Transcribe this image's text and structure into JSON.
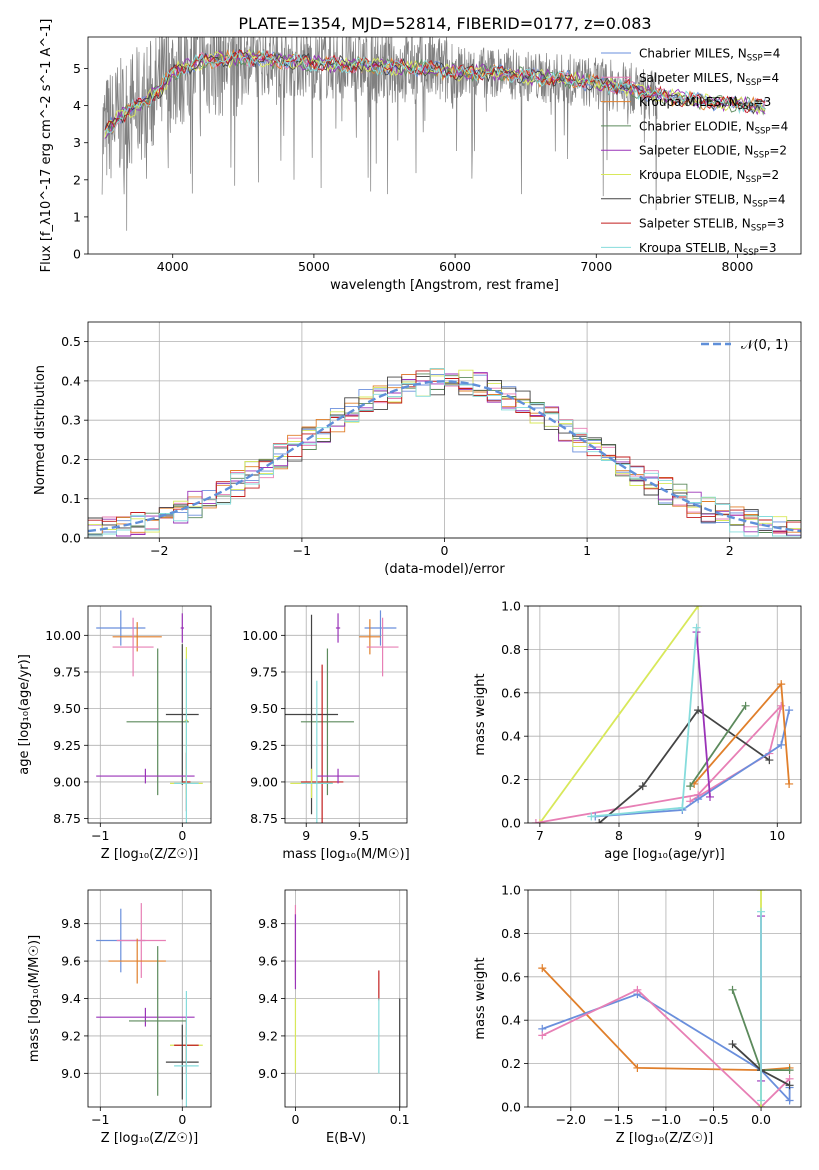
{
  "figure_title": "PLATE=1354, MJD=52814, FIBERID=0177, z=0.083",
  "colors": {
    "Chabrier MILES": "#6a8fdc",
    "Salpeter MILES": "#e77fb5",
    "Kroupa MILES": "#e07f2b",
    "Chabrier ELODIE": "#5c8a5c",
    "Salpeter ELODIE": "#9a33b8",
    "Kroupa ELODIE": "#d8e85a",
    "Chabrier STELIB": "#444444",
    "Salpeter STELIB": "#c21e1e",
    "Kroupa STELIB": "#86dcdc",
    "data": "#808080",
    "normal": "#5f8fd9"
  },
  "chart_data": [
    {
      "id": "spectrum",
      "type": "line",
      "xlabel": "wavelength [Angstrom, rest frame]",
      "ylabel": "Flux [f_λ10^-17 erg cm^-2 s^-1 A^-1]",
      "xlim": [
        3400,
        8450
      ],
      "ylim": [
        0,
        5.85
      ],
      "xticks": [
        4000,
        5000,
        6000,
        7000,
        8000
      ],
      "yticks": [
        0,
        1,
        2,
        3,
        4,
        5
      ],
      "grid": false,
      "legend_position": "upper-right",
      "legend": [
        {
          "name": "Chabrier MILES",
          "nssp": "4"
        },
        {
          "name": "Salpeter MILES",
          "nssp": "4"
        },
        {
          "name": "Kroupa MILES",
          "nssp": "3"
        },
        {
          "name": "Chabrier ELODIE",
          "nssp": "4"
        },
        {
          "name": "Salpeter ELODIE",
          "nssp": "2"
        },
        {
          "name": "Kroupa ELODIE",
          "nssp": "2"
        },
        {
          "name": "Chabrier STELIB",
          "nssp": "4"
        },
        {
          "name": "Salpeter STELIB",
          "nssp": "3"
        },
        {
          "name": "Kroupa STELIB",
          "nssp": "3"
        }
      ],
      "continuum": {
        "wavelength": [
          3500,
          3600,
          3700,
          3800,
          3900,
          4000,
          4200,
          4500,
          4800,
          5000,
          5200,
          5500,
          5800,
          6000,
          6300,
          6600,
          6800,
          7000,
          7200,
          7400,
          7600,
          7800,
          8000,
          8200
        ],
        "flux": [
          3.2,
          3.6,
          3.9,
          4.1,
          4.4,
          4.9,
          5.2,
          5.3,
          5.2,
          5.15,
          5.1,
          5.05,
          5.0,
          4.9,
          4.9,
          4.75,
          4.7,
          4.6,
          4.5,
          4.3,
          4.2,
          4.1,
          4.05,
          3.95
        ]
      }
    },
    {
      "id": "residuals",
      "type": "line",
      "xlabel": "(data-model)/error",
      "ylabel": "Normed distribution",
      "xlim": [
        -2.5,
        2.5
      ],
      "ylim": [
        0,
        0.55
      ],
      "xticks": [
        -2,
        -1,
        0,
        1,
        2
      ],
      "xtick_labels": [
        "−2",
        "−1",
        "0",
        "1",
        "2"
      ],
      "yticks": [
        0.0,
        0.1,
        0.2,
        0.3,
        0.4,
        0.5
      ],
      "grid": true,
      "legend_position": "upper-right",
      "legend_label": "𝒩(0, 1)",
      "normal_curve": {
        "mean": 0,
        "sigma": 1
      }
    },
    {
      "id": "age-vs-Z",
      "type": "scatter",
      "xlabel": "Z [log₁₀(Z/Z☉)]",
      "ylabel": "age  [log₁₀(age/yr)]",
      "xlim": [
        -1.15,
        0.35
      ],
      "ylim": [
        8.72,
        10.2
      ],
      "xticks": [
        -1,
        0
      ],
      "xtick_labels": [
        "−1",
        "0"
      ],
      "yticks": [
        8.75,
        9.0,
        9.25,
        9.5,
        9.75,
        10.0
      ],
      "grid": true,
      "points": [
        {
          "model": "Chabrier MILES",
          "x": -0.75,
          "y": 10.05,
          "xerr": 0.3,
          "yerr": 0.12
        },
        {
          "model": "Kroupa MILES",
          "x": -0.55,
          "y": 9.99,
          "xerr": 0.3,
          "yerr": 0.1
        },
        {
          "model": "Salpeter MILES",
          "x": -0.6,
          "y": 9.92,
          "xerr": 0.25,
          "yerr": 0.2
        },
        {
          "model": "Salpeter ELODIE",
          "x": 0.0,
          "y": 10.05,
          "xerr": 0.02,
          "yerr": 0.1
        },
        {
          "model": "Kroupa ELODIE",
          "x": 0.05,
          "y": 9.42,
          "xerr": 0.02,
          "yerr": 0.5
        },
        {
          "model": "Chabrier ELODIE",
          "x": -0.3,
          "y": 9.41,
          "xerr": 0.38,
          "yerr": 0.5
        },
        {
          "model": "Chabrier STELIB",
          "x": 0.0,
          "y": 9.46,
          "xerr": 0.2,
          "yerr": 0.48
        },
        {
          "model": "Salpeter STELIB",
          "x": 0.05,
          "y": 9.0,
          "xerr": 0.05,
          "yerr": 0.2
        },
        {
          "model": "Salpeter ELODIE",
          "x": -0.45,
          "y": 9.04,
          "xerr": 0.6,
          "yerr": 0.05
        },
        {
          "model": "Kroupa ELODIE",
          "x": 0.05,
          "y": 8.99,
          "xerr": 0.2,
          "yerr": 0.1
        },
        {
          "model": "Kroupa STELIB",
          "x": 0.05,
          "y": 8.99,
          "xerr": 0.15,
          "yerr": 0.85
        }
      ]
    },
    {
      "id": "age-vs-mass",
      "type": "scatter",
      "xlabel": "mass [log₁₀(M/M☉)]",
      "ylabel": "",
      "xlim": [
        8.8,
        9.95
      ],
      "ylim": [
        8.72,
        10.2
      ],
      "xticks": [
        9.0,
        9.5
      ],
      "yticks": [
        8.75,
        9.0,
        9.25,
        9.5,
        9.75,
        10.0
      ],
      "grid": true,
      "points": [
        {
          "model": "Chabrier MILES",
          "x": 9.7,
          "y": 10.05,
          "xerr": 0.15,
          "yerr": 0.12
        },
        {
          "model": "Kroupa MILES",
          "x": 9.6,
          "y": 9.99,
          "xerr": 0.1,
          "yerr": 0.12
        },
        {
          "model": "Salpeter MILES",
          "x": 9.72,
          "y": 9.92,
          "xerr": 0.15,
          "yerr": 0.2
        },
        {
          "model": "Salpeter ELODIE",
          "x": 9.3,
          "y": 10.05,
          "xerr": 0.02,
          "yerr": 0.1
        },
        {
          "model": "Chabrier ELODIE",
          "x": 9.2,
          "y": 9.41,
          "xerr": 0.25,
          "yerr": 0.5
        },
        {
          "model": "Chabrier STELIB",
          "x": 9.05,
          "y": 9.46,
          "xerr": 0.25,
          "yerr": 0.68
        },
        {
          "model": "Salpeter STELIB",
          "x": 9.15,
          "y": 9.0,
          "xerr": 0.2,
          "yerr": 0.8
        },
        {
          "model": "Salpeter ELODIE",
          "x": 9.3,
          "y": 9.04,
          "xerr": 0.2,
          "yerr": 0.05
        },
        {
          "model": "Kroupa ELODIE",
          "x": 9.05,
          "y": 8.99,
          "xerr": 0.2,
          "yerr": 0.1
        },
        {
          "model": "Kroupa STELIB",
          "x": 9.1,
          "y": 8.99,
          "xerr": 0.15,
          "yerr": 0.7
        }
      ]
    },
    {
      "id": "weight-vs-age",
      "type": "line",
      "xlabel": "age  [log₁₀(age/yr)]",
      "ylabel": "mass weight",
      "xlim": [
        6.85,
        10.3
      ],
      "ylim": [
        0,
        1.0
      ],
      "xticks": [
        7,
        8,
        9,
        10
      ],
      "yticks": [
        0.0,
        0.2,
        0.4,
        0.6,
        0.8,
        1.0
      ],
      "grid": true,
      "series": [
        {
          "model": "Kroupa ELODIE",
          "x": [
            7.0,
            9.0
          ],
          "y": [
            0.0,
            1.0
          ]
        },
        {
          "model": "Salpeter MILES",
          "x": [
            6.95,
            9.0,
            10.05,
            9.9,
            8.9
          ],
          "y": [
            0.0,
            0.13,
            0.54,
            0.32,
            0.1
          ]
        },
        {
          "model": "Chabrier STELIB",
          "x": [
            7.75,
            8.3,
            9.0,
            9.9
          ],
          "y": [
            0.0,
            0.17,
            0.52,
            0.29
          ]
        },
        {
          "model": "Chabrier MILES",
          "x": [
            7.7,
            8.8,
            9.0,
            10.05,
            10.15
          ],
          "y": [
            0.03,
            0.06,
            0.11,
            0.36,
            0.52
          ]
        },
        {
          "model": "Kroupa MILES",
          "x": [
            8.95,
            10.05,
            10.15
          ],
          "y": [
            0.18,
            0.64,
            0.18
          ]
        },
        {
          "model": "Chabrier ELODIE",
          "x": [
            8.9,
            9.6
          ],
          "y": [
            0.17,
            0.54
          ]
        },
        {
          "model": "Salpeter ELODIE",
          "x": [
            8.98,
            9.15
          ],
          "y": [
            0.88,
            0.12
          ]
        },
        {
          "model": "Kroupa STELIB",
          "x": [
            7.65,
            8.8,
            8.98
          ],
          "y": [
            0.03,
            0.07,
            0.9
          ]
        }
      ]
    },
    {
      "id": "mass-vs-Z",
      "type": "scatter",
      "xlabel": "Z [log₁₀(Z/Z☉)]",
      "ylabel": "mass [log₁₀(M/M☉)]",
      "xlim": [
        -1.15,
        0.35
      ],
      "ylim": [
        8.82,
        9.98
      ],
      "xticks": [
        -1,
        0
      ],
      "xtick_labels": [
        "−1",
        "0"
      ],
      "yticks": [
        9.0,
        9.2,
        9.4,
        9.6,
        9.8
      ],
      "grid": true,
      "points": [
        {
          "model": "Chabrier MILES",
          "x": -0.75,
          "y": 9.71,
          "xerr": 0.3,
          "yerr": 0.17
        },
        {
          "model": "Salpeter MILES",
          "x": -0.5,
          "y": 9.71,
          "xerr": 0.3,
          "yerr": 0.2
        },
        {
          "model": "Kroupa MILES",
          "x": -0.55,
          "y": 9.6,
          "xerr": 0.35,
          "yerr": 0.12
        },
        {
          "model": "Salpeter ELODIE",
          "x": -0.45,
          "y": 9.3,
          "xerr": 0.6,
          "yerr": 0.05
        },
        {
          "model": "Chabrier ELODIE",
          "x": -0.3,
          "y": 9.28,
          "xerr": 0.35,
          "yerr": 0.4
        },
        {
          "model": "Kroupa ELODIE",
          "x": 0.05,
          "y": 9.15,
          "xerr": 0.2,
          "yerr": 0.1
        },
        {
          "model": "Salpeter STELIB",
          "x": 0.05,
          "y": 9.15,
          "xerr": 0.15,
          "yerr": 0.15
        },
        {
          "model": "Chabrier STELIB",
          "x": 0.0,
          "y": 9.06,
          "xerr": 0.2,
          "yerr": 0.2
        },
        {
          "model": "Kroupa STELIB",
          "x": 0.05,
          "y": 9.04,
          "xerr": 0.15,
          "yerr": 0.4
        }
      ]
    },
    {
      "id": "mass-vs-ebv",
      "type": "scatter",
      "xlabel": "E(B-V)",
      "ylabel": "",
      "xlim": [
        -0.01,
        0.107
      ],
      "ylim": [
        8.82,
        9.98
      ],
      "xticks": [
        0.0,
        0.1
      ],
      "yticks": [
        9.0,
        9.2,
        9.4,
        9.6,
        9.8
      ],
      "grid": true,
      "points": [
        {
          "model": "Salpeter MILES",
          "x": 0.0,
          "y": 9.7,
          "xerr": 0,
          "yerr": 0.2
        },
        {
          "model": "Salpeter ELODIE",
          "x": 0.0,
          "y": 9.65,
          "xerr": 0,
          "yerr": 0.2
        },
        {
          "model": "Kroupa ELODIE",
          "x": 0.0,
          "y": 9.2,
          "xerr": 0,
          "yerr": 0.2
        },
        {
          "model": "Salpeter STELIB",
          "x": 0.08,
          "y": 9.47,
          "xerr": 0,
          "yerr": 0.08
        },
        {
          "model": "Kroupa STELIB",
          "x": 0.08,
          "y": 9.2,
          "xerr": 0,
          "yerr": 0.2
        },
        {
          "model": "Chabrier STELIB",
          "x": 0.1,
          "y": 9.1,
          "xerr": 0,
          "yerr": 0.3
        }
      ]
    },
    {
      "id": "weight-vs-Z",
      "type": "line",
      "xlabel": "Z [log₁₀(Z/Z☉)]",
      "ylabel": "mass weight",
      "xlim": [
        -2.45,
        0.42
      ],
      "ylim": [
        0,
        1.0
      ],
      "xticks": [
        -2.0,
        -1.5,
        -1.0,
        -0.5,
        0.0
      ],
      "xtick_labels": [
        "−2.0",
        "−1.5",
        "−1.0",
        "−0.5",
        "0.0"
      ],
      "yticks": [
        0.0,
        0.2,
        0.4,
        0.6,
        0.8,
        1.0
      ],
      "grid": true,
      "series": [
        {
          "model": "Kroupa MILES",
          "x": [
            -2.3,
            -1.3,
            0.0,
            0.3
          ],
          "y": [
            0.64,
            0.18,
            0.17,
            0.18
          ]
        },
        {
          "model": "Chabrier MILES",
          "x": [
            -2.3,
            -1.3,
            0.0,
            0.3,
            0.3
          ],
          "y": [
            0.36,
            0.52,
            0.17,
            0.03,
            0.09
          ]
        },
        {
          "model": "Salpeter MILES",
          "x": [
            -2.3,
            -1.3,
            0.0,
            0.3
          ],
          "y": [
            0.33,
            0.54,
            0.0,
            0.13
          ]
        },
        {
          "model": "Chabrier ELODIE",
          "x": [
            -0.3,
            0.0,
            0.3
          ],
          "y": [
            0.54,
            0.17,
            0.17
          ]
        },
        {
          "model": "Chabrier STELIB",
          "x": [
            -0.3,
            0.0,
            0.3
          ],
          "y": [
            0.29,
            0.17,
            0.1
          ]
        },
        {
          "model": "Kroupa ELODIE",
          "x": [
            0.0,
            0.0
          ],
          "y": [
            1.0,
            0.0
          ]
        },
        {
          "model": "Salpeter ELODIE",
          "x": [
            0.0,
            0.0
          ],
          "y": [
            0.88,
            0.12
          ]
        },
        {
          "model": "Kroupa STELIB",
          "x": [
            0.0,
            0.0
          ],
          "y": [
            0.9,
            0.03
          ]
        }
      ]
    }
  ]
}
